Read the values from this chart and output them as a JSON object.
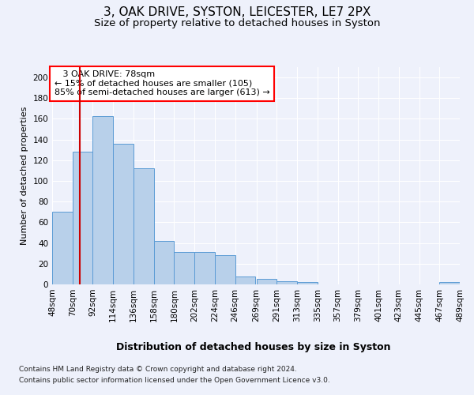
{
  "title1": "3, OAK DRIVE, SYSTON, LEICESTER, LE7 2PX",
  "title2": "Size of property relative to detached houses in Syston",
  "xlabel": "Distribution of detached houses by size in Syston",
  "ylabel": "Number of detached properties",
  "footnote1": "Contains HM Land Registry data © Crown copyright and database right 2024.",
  "footnote2": "Contains public sector information licensed under the Open Government Licence v3.0.",
  "annotation_title": "3 OAK DRIVE: 78sqm",
  "annotation_line1": "← 15% of detached houses are smaller (105)",
  "annotation_line2": "85% of semi-detached houses are larger (613) →",
  "property_size": 78,
  "bar_color": "#b8d0ea",
  "bar_edge_color": "#5b9bd5",
  "red_line_color": "#cc0000",
  "bins": [
    48,
    70,
    92,
    114,
    136,
    158,
    180,
    202,
    224,
    246,
    269,
    291,
    313,
    335,
    357,
    379,
    401,
    423,
    445,
    467,
    489
  ],
  "counts": [
    70,
    128,
    163,
    136,
    112,
    42,
    31,
    31,
    28,
    8,
    5,
    3,
    2,
    0,
    0,
    0,
    0,
    0,
    0,
    2
  ],
  "ylim": [
    0,
    210
  ],
  "yticks": [
    0,
    20,
    40,
    60,
    80,
    100,
    120,
    140,
    160,
    180,
    200
  ],
  "background_color": "#eef1fb",
  "grid_color": "#ffffff",
  "title1_fontsize": 11,
  "title2_fontsize": 9.5,
  "xlabel_fontsize": 9,
  "ylabel_fontsize": 8,
  "tick_fontsize": 7.5,
  "annotation_fontsize": 8,
  "footnote_fontsize": 6.5
}
